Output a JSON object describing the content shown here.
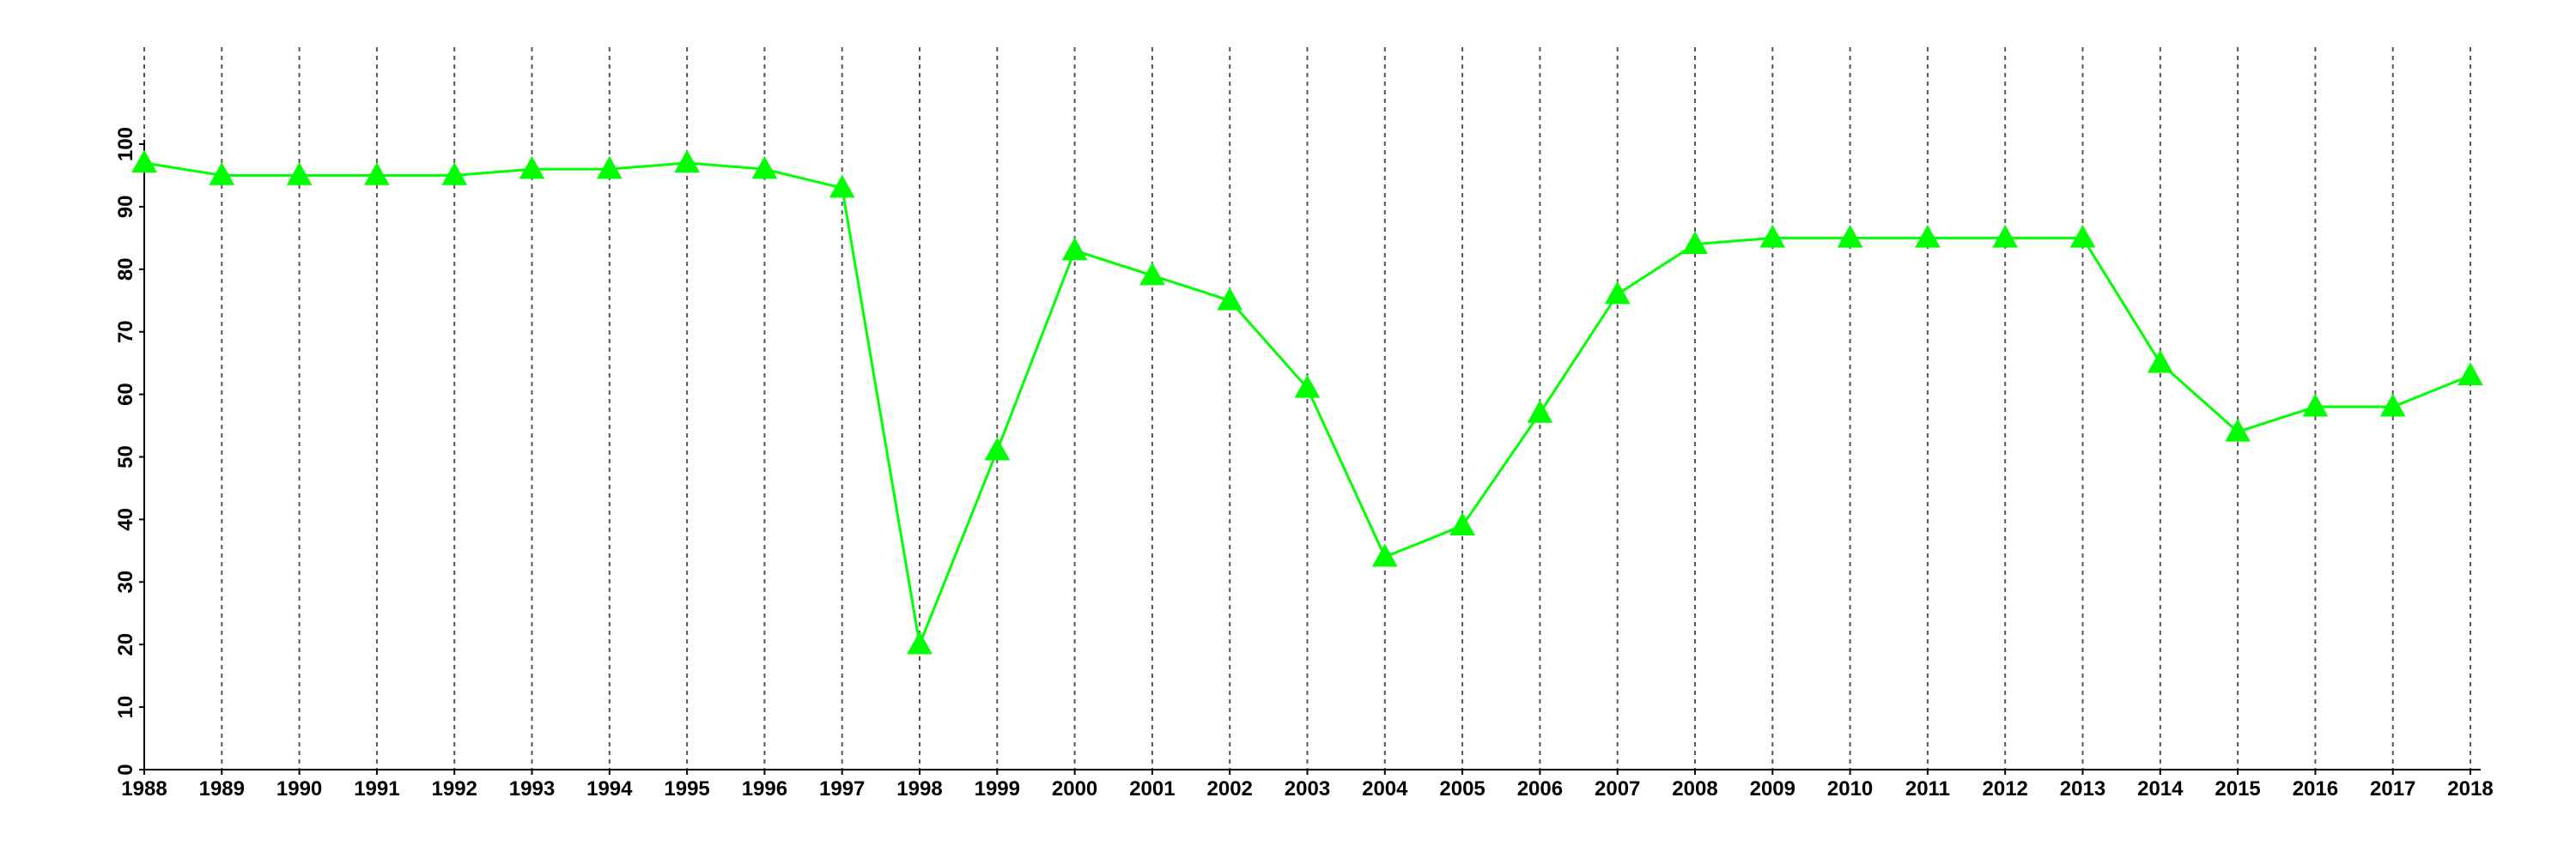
{
  "chart_data": {
    "type": "line",
    "title": "",
    "xlabel": "",
    "ylabel": "",
    "categories": [
      "1988",
      "1989",
      "1990",
      "1991",
      "1992",
      "1993",
      "1994",
      "1995",
      "1996",
      "1997",
      "1998",
      "1999",
      "2000",
      "2001",
      "2002",
      "2003",
      "2004",
      "2005",
      "2006",
      "2007",
      "2008",
      "2009",
      "2010",
      "2011",
      "2012",
      "2013",
      "2014",
      "2015",
      "2016",
      "2017",
      "2018"
    ],
    "series": [
      {
        "values": [
          97,
          95,
          95,
          95,
          95,
          96,
          96,
          97,
          96,
          93,
          20,
          51,
          83,
          79,
          75,
          61,
          34,
          39,
          57,
          76,
          84,
          85,
          85,
          85,
          85,
          85,
          65,
          54,
          58,
          58,
          63
        ],
        "color": "#00ff00",
        "marker": "triangle"
      }
    ],
    "ylim": [
      0,
      100
    ],
    "yticks": [
      "0",
      "10",
      "20",
      "30",
      "40",
      "50",
      "60",
      "70",
      "80",
      "90",
      "100"
    ],
    "grid": "vertical dashed",
    "legend": "none"
  }
}
